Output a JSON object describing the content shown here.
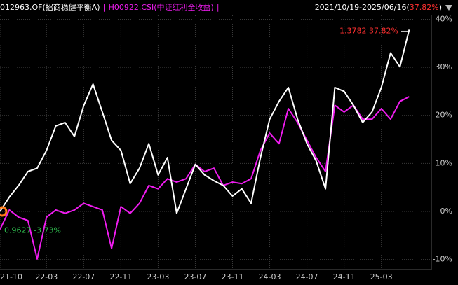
{
  "chart_data": {
    "type": "line",
    "legend_separator": "|",
    "period_return": {
      "prefix": "2021/10/19-2025/06/16(",
      "value": "37.82%",
      "suffix": ")"
    },
    "annotations": {
      "end_label": "1.3782 37.82%",
      "start_label": "0.9627 -3.73%"
    },
    "x": [
      "21-10",
      "21-11",
      "21-12",
      "22-01",
      "22-02",
      "22-03",
      "22-04",
      "22-05",
      "22-06",
      "22-07",
      "22-08",
      "22-09",
      "22-10",
      "22-11",
      "22-12",
      "23-01",
      "23-02",
      "23-03",
      "23-04",
      "23-05",
      "23-06",
      "23-07",
      "23-08",
      "23-09",
      "23-10",
      "23-11",
      "23-12",
      "24-01",
      "24-02",
      "24-03",
      "24-04",
      "24-05",
      "24-06",
      "24-07",
      "24-08",
      "24-09",
      "24-10",
      "24-11",
      "24-12",
      "25-01",
      "25-02",
      "25-03",
      "25-04",
      "25-05",
      "25-06"
    ],
    "xticks": [
      "21-10",
      "22-03",
      "22-07",
      "22-11",
      "23-03",
      "23-07",
      "23-11",
      "24-03",
      "24-07",
      "24-11",
      "25-03"
    ],
    "ylim": [
      -12.1,
      40.8
    ],
    "yticks": [
      {
        "value": -10,
        "label": "-10%"
      },
      {
        "value": 0,
        "label": "0%"
      },
      {
        "value": 10,
        "label": "10%"
      },
      {
        "value": 20,
        "label": "20%"
      },
      {
        "value": 30,
        "label": "30%"
      },
      {
        "value": 40,
        "label": "40%"
      }
    ],
    "grid": true,
    "series": [
      {
        "name": "012963.OF(招商稳健平衡A)",
        "color": "#ffffff",
        "values": [
          0,
          3,
          5.4,
          8.3,
          9,
          12.7,
          17.8,
          18.5,
          15.6,
          22,
          26.5,
          20.7,
          14.8,
          12.7,
          5.8,
          9,
          14.1,
          7.6,
          11.2,
          -0.4,
          4.7,
          9.8,
          7.6,
          6.4,
          5.4,
          3.2,
          4.7,
          1.7,
          11.2,
          19.2,
          22.9,
          25.8,
          19.2,
          14.1,
          10.5,
          4.7,
          25.8,
          25,
          22.1,
          18.5,
          20.7,
          25.8,
          33,
          30.1,
          37.82
        ]
      },
      {
        "name": "H00922.CSI(中证红利全收益)",
        "color": "#f01cf0",
        "values": [
          -3.73,
          0.3,
          -1.2,
          -1.9,
          -9.9,
          -1.2,
          0.3,
          -0.4,
          0.3,
          1.7,
          1,
          0.3,
          -7.7,
          1,
          -0.4,
          1.7,
          5.4,
          4.7,
          6.8,
          6.1,
          6.8,
          9.8,
          8.3,
          9,
          5.4,
          6.1,
          5.8,
          6.8,
          12.7,
          16.3,
          14.1,
          21.4,
          18.5,
          14.8,
          11.2,
          8.3,
          22.1,
          20.7,
          22.1,
          19.2,
          19.2,
          21.4,
          19.2,
          22.9,
          23.9
        ]
      }
    ]
  }
}
